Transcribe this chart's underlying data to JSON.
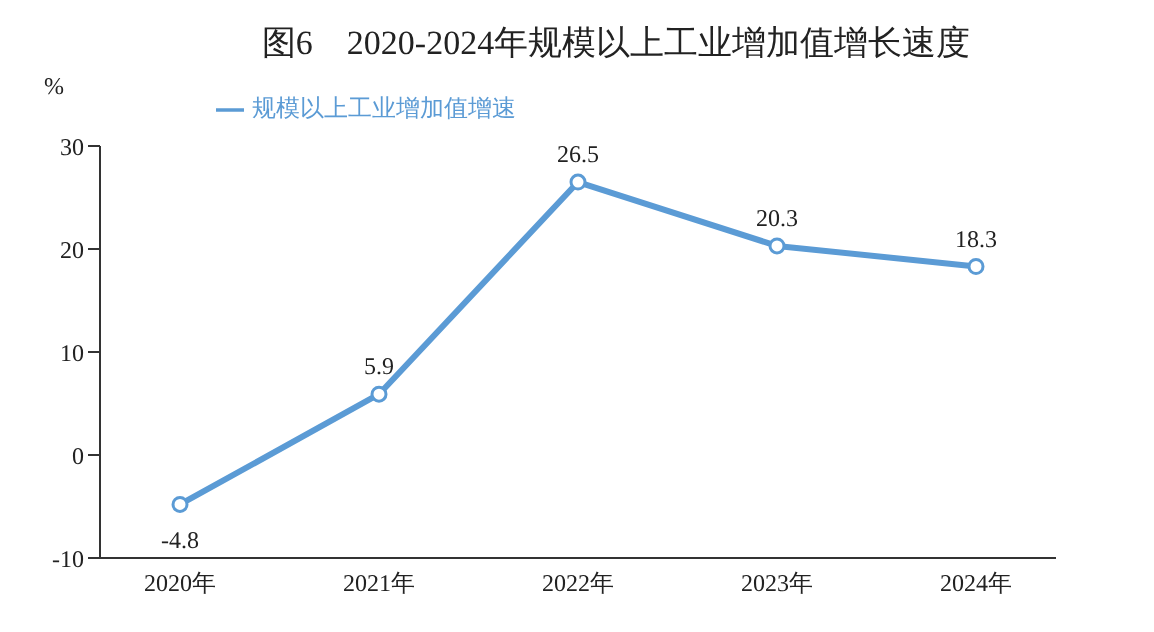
{
  "chart_data": {
    "type": "line",
    "title": "图6　2020-2024年规模以上工业增加值增长速度",
    "ylabel": "%",
    "categories": [
      "2020年",
      "2021年",
      "2022年",
      "2023年",
      "2024年"
    ],
    "series": [
      {
        "name": "规模以上工业增加值增速",
        "color": "#5b9bd5",
        "values": [
          -4.8,
          5.9,
          26.5,
          20.3,
          18.3
        ]
      }
    ],
    "ylim": [
      -10,
      30
    ],
    "yticks": [
      -10,
      0,
      10,
      20,
      30
    ],
    "legend": "top left",
    "marker": "circle",
    "line_style": "solid",
    "data_labels": true
  }
}
